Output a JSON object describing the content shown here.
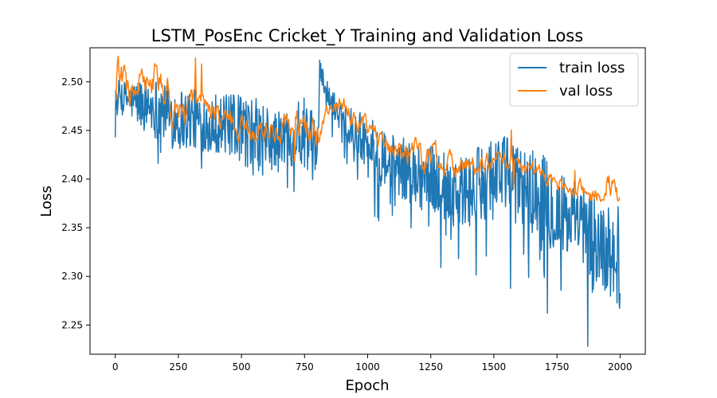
{
  "chart_data": {
    "type": "line",
    "title": "LSTM_PosEnc Cricket_Y Training and Validation Loss",
    "xlabel": "Epoch",
    "ylabel": "Loss",
    "xlim": [
      -100,
      2100
    ],
    "ylim": [
      2.22,
      2.535
    ],
    "x_ticks": [
      0,
      250,
      500,
      750,
      1000,
      1250,
      1500,
      1750,
      2000
    ],
    "y_ticks": [
      2.25,
      2.3,
      2.35,
      2.4,
      2.45,
      2.5
    ],
    "grid": false,
    "legend_position": "top-right",
    "series": [
      {
        "name": "train loss",
        "color": "#1f77b4",
        "x": [
          0,
          50,
          100,
          150,
          200,
          250,
          300,
          350,
          400,
          450,
          500,
          550,
          600,
          650,
          700,
          750,
          800,
          810,
          850,
          900,
          950,
          1000,
          1050,
          1100,
          1150,
          1200,
          1250,
          1300,
          1350,
          1400,
          1450,
          1500,
          1550,
          1600,
          1650,
          1700,
          1750,
          1800,
          1850,
          1900,
          1950,
          2000
        ],
        "values": [
          2.486,
          2.482,
          2.478,
          2.475,
          2.468,
          2.462,
          2.462,
          2.46,
          2.458,
          2.455,
          2.452,
          2.445,
          2.44,
          2.438,
          2.445,
          2.448,
          2.43,
          2.515,
          2.48,
          2.465,
          2.45,
          2.44,
          2.42,
          2.415,
          2.41,
          2.405,
          2.4,
          2.395,
          2.39,
          2.385,
          2.395,
          2.41,
          2.405,
          2.395,
          2.39,
          2.38,
          2.365,
          2.355,
          2.35,
          2.335,
          2.325,
          2.32
        ],
        "noise_amplitude": [
          0.02,
          0.02,
          0.03,
          0.035,
          0.035,
          0.04,
          0.035,
          0.035,
          0.035,
          0.035,
          0.04,
          0.045,
          0.04,
          0.035,
          0.035,
          0.04,
          0.035,
          0.01,
          0.015,
          0.02,
          0.025,
          0.03,
          0.035,
          0.035,
          0.035,
          0.04,
          0.04,
          0.04,
          0.045,
          0.045,
          0.045,
          0.045,
          0.045,
          0.045,
          0.045,
          0.05,
          0.05,
          0.05,
          0.05,
          0.055,
          0.055,
          0.06
        ]
      },
      {
        "name": "val loss",
        "color": "#ff7f0e",
        "x": [
          0,
          10,
          20,
          40,
          60,
          80,
          100,
          130,
          160,
          200,
          230,
          260,
          300,
          350,
          400,
          450,
          500,
          550,
          600,
          650,
          700,
          750,
          800,
          820,
          850,
          900,
          950,
          1000,
          1050,
          1100,
          1150,
          1200,
          1250,
          1300,
          1350,
          1400,
          1450,
          1500,
          1550,
          1600,
          1650,
          1700,
          1750,
          1800,
          1850,
          1900,
          1950,
          1980,
          2000
        ],
        "values": [
          2.48,
          2.52,
          2.505,
          2.5,
          2.485,
          2.49,
          2.5,
          2.49,
          2.505,
          2.48,
          2.475,
          2.47,
          2.47,
          2.475,
          2.46,
          2.46,
          2.455,
          2.45,
          2.45,
          2.455,
          2.46,
          2.455,
          2.44,
          2.465,
          2.47,
          2.478,
          2.465,
          2.448,
          2.44,
          2.432,
          2.428,
          2.425,
          2.42,
          2.418,
          2.415,
          2.415,
          2.412,
          2.418,
          2.42,
          2.415,
          2.41,
          2.405,
          2.395,
          2.39,
          2.388,
          2.385,
          2.395,
          2.385,
          2.375
        ],
        "noise_amplitude": [
          0.01,
          0.01,
          0.012,
          0.012,
          0.012,
          0.01,
          0.012,
          0.012,
          0.012,
          0.015,
          0.015,
          0.012,
          0.012,
          0.01,
          0.01,
          0.01,
          0.008,
          0.008,
          0.008,
          0.01,
          0.01,
          0.012,
          0.012,
          0.008,
          0.006,
          0.006,
          0.008,
          0.008,
          0.008,
          0.01,
          0.01,
          0.012,
          0.012,
          0.01,
          0.01,
          0.008,
          0.006,
          0.006,
          0.006,
          0.006,
          0.006,
          0.006,
          0.006,
          0.006,
          0.006,
          0.008,
          0.01,
          0.01,
          0.008
        ]
      }
    ]
  }
}
